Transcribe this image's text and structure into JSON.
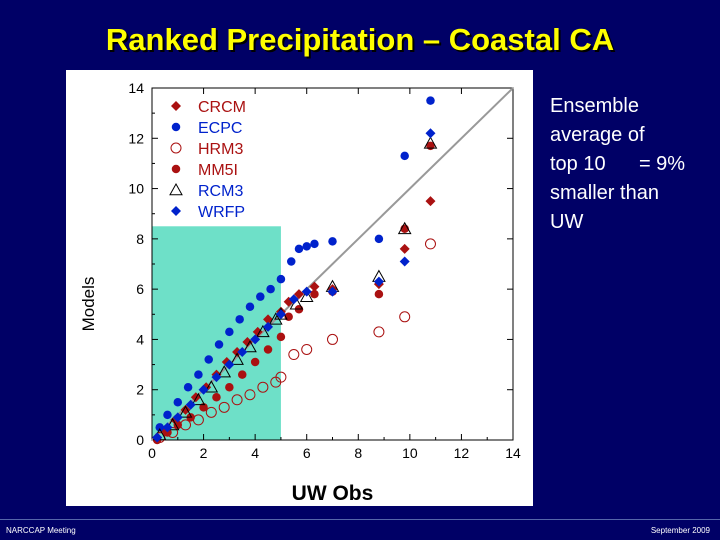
{
  "slide": {
    "title": "Ranked Precipitation – Coastal CA",
    "note_lines": [
      "Ensemble",
      "average of",
      "top 10      = 9%",
      "smaller than",
      "UW"
    ],
    "footer_left": "NARCCAP Meeting",
    "footer_right": "September 2009"
  },
  "chart_data": {
    "type": "scatter",
    "xlabel": "UW Obs",
    "ylabel": "Models",
    "xlim": [
      0,
      14
    ],
    "ylim": [
      0,
      14
    ],
    "xticks": [
      0,
      2,
      4,
      6,
      8,
      10,
      12,
      14
    ],
    "yticks": [
      0,
      2,
      4,
      6,
      8,
      10,
      12,
      14
    ],
    "grid": false,
    "one_to_one_line": true,
    "highlight_region": {
      "x": [
        0,
        5
      ],
      "y": [
        0,
        8.5
      ],
      "color": "#6ee0c8"
    },
    "legend_position": "top-left",
    "series": [
      {
        "name": "CRCM",
        "marker": "diamond-filled",
        "color": "#aa1111",
        "points": [
          [
            0.2,
            0.1
          ],
          [
            0.5,
            0.4
          ],
          [
            0.9,
            0.8
          ],
          [
            1.3,
            1.2
          ],
          [
            1.7,
            1.7
          ],
          [
            2.1,
            2.1
          ],
          [
            2.5,
            2.6
          ],
          [
            2.9,
            3.1
          ],
          [
            3.3,
            3.5
          ],
          [
            3.7,
            3.9
          ],
          [
            4.1,
            4.3
          ],
          [
            4.5,
            4.8
          ],
          [
            5.0,
            5.1
          ],
          [
            5.3,
            5.5
          ],
          [
            5.7,
            5.8
          ],
          [
            6.3,
            6.1
          ],
          [
            7.0,
            6.0
          ],
          [
            8.8,
            6.2
          ],
          [
            9.8,
            7.6
          ],
          [
            10.8,
            9.5
          ]
        ]
      },
      {
        "name": "ECPC",
        "marker": "circle-filled",
        "color": "#0022cc",
        "points": [
          [
            0.3,
            0.5
          ],
          [
            0.6,
            1.0
          ],
          [
            1.0,
            1.5
          ],
          [
            1.4,
            2.1
          ],
          [
            1.8,
            2.6
          ],
          [
            2.2,
            3.2
          ],
          [
            2.6,
            3.8
          ],
          [
            3.0,
            4.3
          ],
          [
            3.4,
            4.8
          ],
          [
            3.8,
            5.3
          ],
          [
            4.2,
            5.7
          ],
          [
            4.6,
            6.0
          ],
          [
            5.0,
            6.4
          ],
          [
            5.4,
            7.1
          ],
          [
            5.7,
            7.6
          ],
          [
            6.0,
            7.7
          ],
          [
            6.3,
            7.8
          ],
          [
            7.0,
            7.9
          ],
          [
            8.8,
            8.0
          ],
          [
            9.8,
            11.3
          ],
          [
            10.8,
            13.5
          ]
        ]
      },
      {
        "name": "HRM3",
        "marker": "circle-open",
        "color": "#aa1111",
        "points": [
          [
            0.3,
            0.1
          ],
          [
            0.8,
            0.3
          ],
          [
            1.3,
            0.6
          ],
          [
            1.8,
            0.8
          ],
          [
            2.3,
            1.1
          ],
          [
            2.8,
            1.3
          ],
          [
            3.3,
            1.6
          ],
          [
            3.8,
            1.8
          ],
          [
            4.3,
            2.1
          ],
          [
            4.8,
            2.3
          ],
          [
            5.0,
            2.5
          ],
          [
            5.5,
            3.4
          ],
          [
            6.0,
            3.6
          ],
          [
            7.0,
            4.0
          ],
          [
            8.8,
            4.3
          ],
          [
            9.8,
            4.9
          ],
          [
            10.8,
            7.8
          ]
        ]
      },
      {
        "name": "MM5I",
        "marker": "circle-filled",
        "color": "#aa1111",
        "points": [
          [
            0.2,
            0.0
          ],
          [
            0.6,
            0.3
          ],
          [
            1.0,
            0.6
          ],
          [
            1.5,
            0.9
          ],
          [
            2.0,
            1.3
          ],
          [
            2.5,
            1.7
          ],
          [
            3.0,
            2.1
          ],
          [
            3.5,
            2.6
          ],
          [
            4.0,
            3.1
          ],
          [
            4.5,
            3.6
          ],
          [
            5.0,
            4.1
          ],
          [
            5.3,
            4.9
          ],
          [
            5.7,
            5.2
          ],
          [
            6.3,
            5.8
          ],
          [
            7.0,
            5.9
          ],
          [
            8.8,
            5.8
          ],
          [
            9.8,
            8.4
          ],
          [
            10.8,
            11.7
          ]
        ]
      },
      {
        "name": "RCM3",
        "marker": "triangle-open",
        "color": "#000000",
        "points": [
          [
            0.3,
            0.2
          ],
          [
            0.8,
            0.6
          ],
          [
            1.3,
            1.1
          ],
          [
            1.8,
            1.6
          ],
          [
            2.3,
            2.1
          ],
          [
            2.8,
            2.7
          ],
          [
            3.3,
            3.2
          ],
          [
            3.8,
            3.7
          ],
          [
            4.3,
            4.3
          ],
          [
            4.8,
            4.8
          ],
          [
            5.0,
            5.0
          ],
          [
            5.6,
            5.4
          ],
          [
            6.0,
            5.7
          ],
          [
            7.0,
            6.1
          ],
          [
            8.8,
            6.5
          ],
          [
            9.8,
            8.4
          ],
          [
            10.8,
            11.8
          ]
        ]
      },
      {
        "name": "WRFP",
        "marker": "diamond-filled",
        "color": "#0022cc",
        "points": [
          [
            0.2,
            0.1
          ],
          [
            0.6,
            0.5
          ],
          [
            1.0,
            0.9
          ],
          [
            1.5,
            1.4
          ],
          [
            2.0,
            2.0
          ],
          [
            2.5,
            2.5
          ],
          [
            3.0,
            3.0
          ],
          [
            3.5,
            3.5
          ],
          [
            4.0,
            4.0
          ],
          [
            4.5,
            4.5
          ],
          [
            5.0,
            5.0
          ],
          [
            5.5,
            5.6
          ],
          [
            6.0,
            5.9
          ],
          [
            7.0,
            5.9
          ],
          [
            8.8,
            6.3
          ],
          [
            9.8,
            7.1
          ],
          [
            10.8,
            12.2
          ]
        ]
      }
    ]
  }
}
